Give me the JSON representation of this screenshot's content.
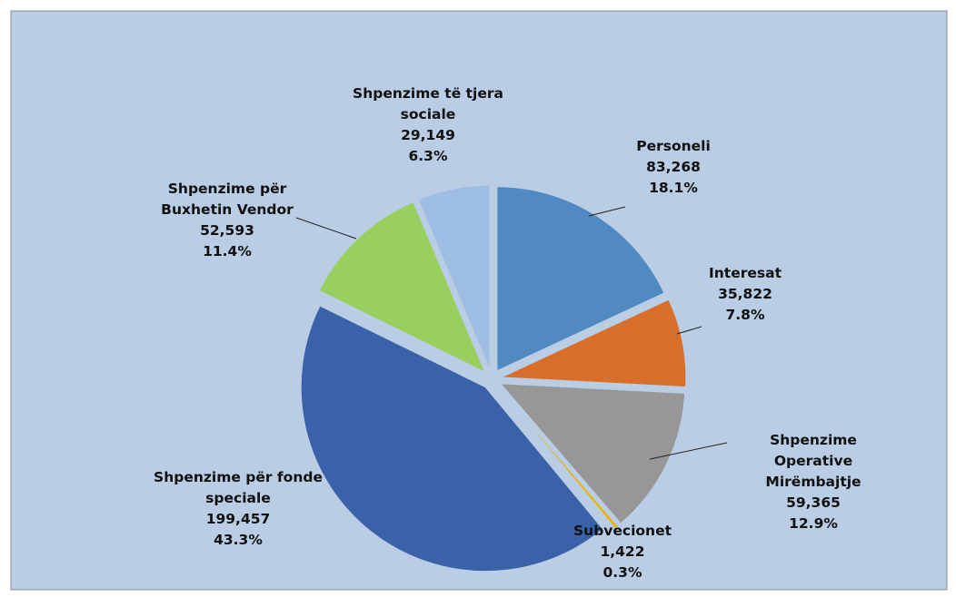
{
  "chart_data": {
    "type": "pie",
    "categories": [
      "Personeli",
      "Interesat",
      "Shpenzime Operative\nMirëmbajtje",
      "Subvecionet",
      "Shpenzime për fonde\nspeciale",
      "Shpenzime për\nBuxhetin Vendor",
      "Shpenzime të tjera\nsociale"
    ],
    "values": [
      83268,
      35822,
      59365,
      1422,
      199457,
      52593,
      29149
    ],
    "value_labels": [
      "83,268",
      "35,822",
      "59,365",
      "1,422",
      "199,457",
      "52,593",
      "29,149"
    ],
    "percent_labels": [
      "18.1%",
      "7.8%",
      "12.9%",
      "0.3%",
      "43.3%",
      "11.4%",
      "6.3%"
    ],
    "colors": [
      "#5189c1",
      "#d76f2a",
      "#979797",
      "#e8b400",
      "#3b62a9",
      "#98cf5f",
      "#9ebde2"
    ]
  }
}
